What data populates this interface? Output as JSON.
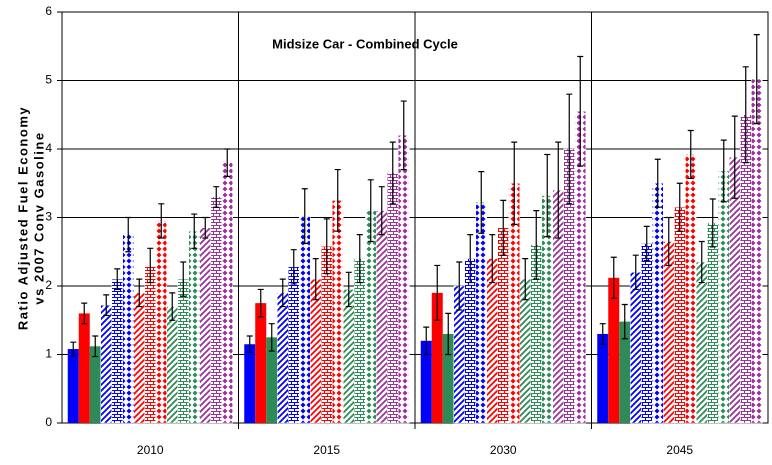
{
  "chart_data": {
    "type": "bar",
    "title": "Midsize Car - Combined Cycle",
    "y_label": [
      "Ratio Adjusted Fuel Economy",
      "vs 2007 Conv Gasoline"
    ],
    "categories": [
      "2010",
      "2015",
      "2030",
      "2045"
    ],
    "ylim": [
      0,
      6
    ],
    "yticks": [
      0,
      1,
      2,
      3,
      4,
      5,
      6
    ],
    "grid": true,
    "series": [
      {
        "color": "#0000ff",
        "pattern": "solid",
        "values": [
          1.08,
          1.15,
          1.2,
          1.3
        ],
        "errors": [
          0.1,
          0.12,
          0.2,
          0.15
        ]
      },
      {
        "color": "#ff0000",
        "pattern": "solid",
        "values": [
          1.6,
          1.75,
          1.9,
          2.12
        ],
        "errors": [
          0.15,
          0.2,
          0.4,
          0.3
        ]
      },
      {
        "color": "#2e8b57",
        "pattern": "solid",
        "values": [
          1.12,
          1.25,
          1.3,
          1.48
        ],
        "errors": [
          0.15,
          0.2,
          0.3,
          0.25
        ]
      },
      {
        "color": "#0000ff",
        "pattern": "diagonal",
        "values": [
          1.72,
          1.9,
          2.0,
          2.2
        ],
        "errors": [
          0.15,
          0.2,
          0.35,
          0.25
        ]
      },
      {
        "color": "#0000ff",
        "pattern": "brick",
        "values": [
          2.1,
          2.28,
          2.4,
          2.62
        ],
        "errors": [
          0.15,
          0.25,
          0.35,
          0.25
        ]
      },
      {
        "color": "#0000ff",
        "pattern": "diamond",
        "values": [
          2.75,
          3.02,
          3.22,
          3.5
        ],
        "errors": [
          0.25,
          0.4,
          0.45,
          0.35
        ]
      },
      {
        "color": "#ff0000",
        "pattern": "diagonal",
        "values": [
          1.9,
          2.1,
          2.4,
          2.65
        ],
        "errors": [
          0.2,
          0.3,
          0.35,
          0.35
        ]
      },
      {
        "color": "#ff0000",
        "pattern": "brick",
        "values": [
          2.3,
          2.58,
          2.85,
          3.15
        ],
        "errors": [
          0.25,
          0.4,
          0.4,
          0.35
        ]
      },
      {
        "color": "#ff0000",
        "pattern": "diamond",
        "values": [
          2.95,
          3.25,
          3.5,
          3.92
        ],
        "errors": [
          0.25,
          0.45,
          0.6,
          0.35
        ]
      },
      {
        "color": "#2e8b57",
        "pattern": "diagonal",
        "values": [
          1.7,
          1.95,
          2.1,
          2.35
        ],
        "errors": [
          0.2,
          0.25,
          0.3,
          0.3
        ]
      },
      {
        "color": "#2e8b57",
        "pattern": "brick",
        "values": [
          2.1,
          2.4,
          2.6,
          2.92
        ],
        "errors": [
          0.25,
          0.35,
          0.5,
          0.35
        ]
      },
      {
        "color": "#2e8b57",
        "pattern": "diamond",
        "values": [
          2.8,
          3.1,
          3.32,
          3.68
        ],
        "errors": [
          0.25,
          0.45,
          0.6,
          0.45
        ]
      },
      {
        "color": "#993399",
        "pattern": "diagonal",
        "values": [
          2.85,
          3.1,
          3.4,
          3.88
        ],
        "errors": [
          0.15,
          0.35,
          0.7,
          0.6
        ]
      },
      {
        "color": "#993399",
        "pattern": "brick",
        "values": [
          3.3,
          3.65,
          4.0,
          4.5
        ],
        "errors": [
          0.15,
          0.45,
          0.8,
          0.7
        ]
      },
      {
        "color": "#993399",
        "pattern": "diamond",
        "values": [
          3.8,
          4.2,
          4.55,
          5.02
        ],
        "errors": [
          0.2,
          0.5,
          0.8,
          0.65
        ]
      }
    ]
  }
}
